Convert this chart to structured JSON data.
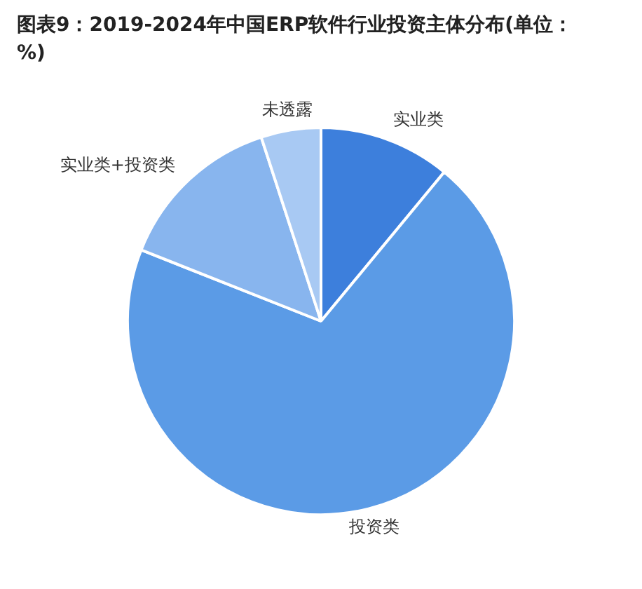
{
  "chart_data": {
    "type": "pie",
    "title": "图表9：2019-2024年中国ERP软件行业投资主体分布(单位：%)",
    "categories": [
      "实业类",
      "投资类",
      "实业类+投资类",
      "未透露"
    ],
    "values": [
      11,
      70,
      14,
      5
    ],
    "colors": [
      "#3d7fdc",
      "#5b9be6",
      "#88b5ee",
      "#a8c9f3"
    ],
    "legend": false
  }
}
